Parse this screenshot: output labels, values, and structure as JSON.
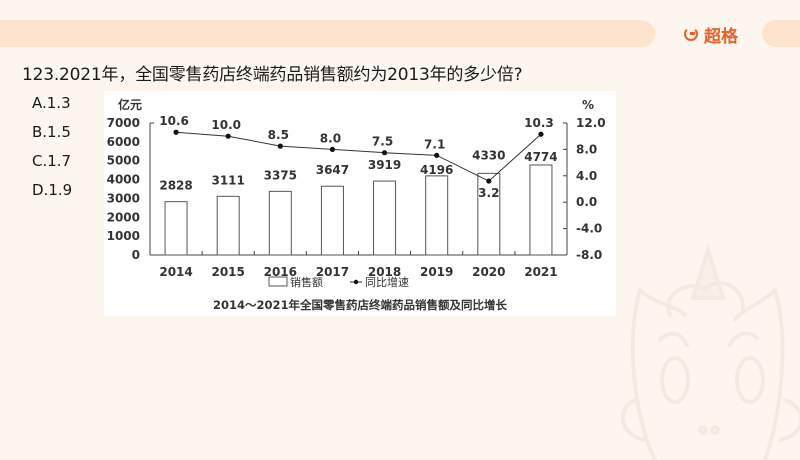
{
  "header": {
    "brand_name": "超格",
    "brand_icon": "g-logo-icon",
    "brand_color": "#e8612c",
    "bar_color": "#fde3cb"
  },
  "question": {
    "number": "123",
    "text": "123.2021年，全国零售药店终端药品销售额约为2013年的多少倍?",
    "options": [
      {
        "key": "A",
        "label": "A.1.3"
      },
      {
        "key": "B",
        "label": "B.1.5"
      },
      {
        "key": "C",
        "label": "C.1.7"
      },
      {
        "key": "D",
        "label": "D.1.9"
      }
    ]
  },
  "chart_data": {
    "type": "bar",
    "title": "2014～2021年全国零售药店终端药品销售额及同比增长",
    "categories": [
      "2014",
      "2015",
      "2016",
      "2017",
      "2018",
      "2019",
      "2020",
      "2021"
    ],
    "series": [
      {
        "name": "销售额",
        "type": "bar",
        "axis": "left",
        "values": [
          2828,
          3111,
          3375,
          3647,
          3919,
          4196,
          4330,
          4774
        ]
      },
      {
        "name": "同比增速",
        "type": "line",
        "axis": "right",
        "values": [
          10.6,
          10.0,
          8.5,
          8.0,
          7.5,
          7.1,
          3.2,
          10.3
        ]
      }
    ],
    "ylabel": "亿元",
    "ylabel_right": "%",
    "ylim": [
      0,
      7000
    ],
    "ylim_right": [
      -8.0,
      12.0
    ],
    "yticks": [
      "0",
      "1000",
      "2000",
      "3000",
      "4000",
      "5000",
      "6000",
      "7000"
    ],
    "yticks_right": [
      "-8.0",
      "-4.0",
      "0.0",
      "4.0",
      "8.0",
      "12.0"
    ],
    "legend": [
      "销售额",
      "同比增速"
    ],
    "legend_position": "bottom",
    "grid": false
  }
}
